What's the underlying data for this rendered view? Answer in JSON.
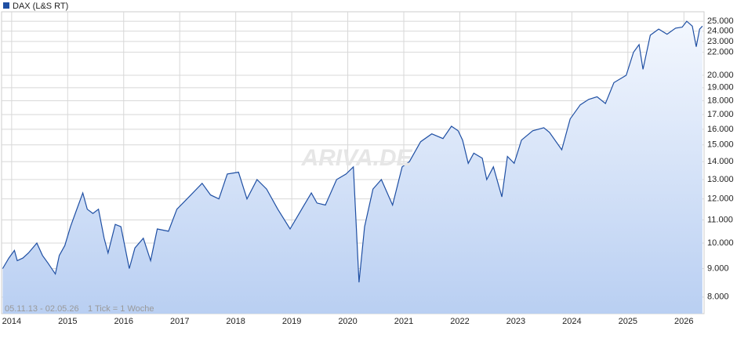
{
  "chart_data": {
    "type": "area",
    "legend": "DAX (L&S RT)",
    "range_note": "05.11.13 - 02.05.26",
    "tick_note": "1 Tick = 1 Woche",
    "watermark": "ARIVA.DE",
    "color": "#1f4fa3",
    "log_scale": true,
    "grid": true,
    "x": [
      2013.84,
      2013.95,
      2014.05,
      2014.1,
      2014.2,
      2014.3,
      2014.45,
      2014.55,
      2014.65,
      2014.78,
      2014.85,
      2014.95,
      2015.05,
      2015.15,
      2015.27,
      2015.35,
      2015.45,
      2015.55,
      2015.65,
      2015.72,
      2015.85,
      2015.95,
      2016.1,
      2016.2,
      2016.35,
      2016.48,
      2016.6,
      2016.8,
      2016.95,
      2017.2,
      2017.4,
      2017.55,
      2017.7,
      2017.85,
      2018.05,
      2018.2,
      2018.38,
      2018.55,
      2018.75,
      2018.97,
      2019.2,
      2019.35,
      2019.45,
      2019.6,
      2019.8,
      2019.97,
      2020.1,
      2020.2,
      2020.3,
      2020.45,
      2020.6,
      2020.8,
      2020.97,
      2021.1,
      2021.3,
      2021.5,
      2021.7,
      2021.85,
      2021.97,
      2022.05,
      2022.15,
      2022.25,
      2022.4,
      2022.48,
      2022.6,
      2022.75,
      2022.85,
      2022.97,
      2023.1,
      2023.3,
      2023.5,
      2023.6,
      2023.82,
      2023.97,
      2024.15,
      2024.3,
      2024.45,
      2024.6,
      2024.75,
      2024.97,
      2025.1,
      2025.2,
      2025.27,
      2025.4,
      2025.55,
      2025.7,
      2025.85,
      2025.97,
      2026.05,
      2026.15,
      2026.22,
      2026.28,
      2026.33
    ],
    "values": [
      9000,
      9400,
      9700,
      9300,
      9400,
      9600,
      10000,
      9500,
      9200,
      8800,
      9500,
      9900,
      10700,
      11400,
      12300,
      11500,
      11300,
      11500,
      10200,
      9600,
      10800,
      10700,
      9000,
      9800,
      10200,
      9300,
      10600,
      10500,
      11500,
      12200,
      12800,
      12200,
      12000,
      13300,
      13400,
      12000,
      13000,
      12500,
      11500,
      10600,
      11600,
      12300,
      11800,
      11700,
      13000,
      13300,
      13700,
      8500,
      10700,
      12500,
      13000,
      11700,
      13700,
      14000,
      15200,
      15700,
      15400,
      16200,
      15900,
      15300,
      13900,
      14500,
      14200,
      13000,
      13700,
      12100,
      14300,
      13900,
      15300,
      15900,
      16100,
      15800,
      14700,
      16700,
      17700,
      18100,
      18300,
      17800,
      19400,
      20000,
      22000,
      22700,
      20500,
      23600,
      24200,
      23700,
      24300,
      24400,
      25000,
      24500,
      22500,
      24200,
      24500
    ],
    "xlim": [
      2013.82,
      2026.36
    ],
    "xticks": [
      2014,
      2015,
      2016,
      2017,
      2018,
      2019,
      2020,
      2021,
      2022,
      2023,
      2024,
      2025,
      2026
    ],
    "ylim": [
      7470,
      26000
    ],
    "yticks": [
      {
        "value": 8000,
        "label": "8.000"
      },
      {
        "value": 9000,
        "label": "9.000"
      },
      {
        "value": 10000,
        "label": "10.000"
      },
      {
        "value": 11000,
        "label": "11.000"
      },
      {
        "value": 12000,
        "label": "12.000"
      },
      {
        "value": 13000,
        "label": "13.000"
      },
      {
        "value": 14000,
        "label": "14.000"
      },
      {
        "value": 15000,
        "label": "15.000"
      },
      {
        "value": 16000,
        "label": "16.000"
      },
      {
        "value": 17000,
        "label": "17.000"
      },
      {
        "value": 18000,
        "label": "18.000"
      },
      {
        "value": 19000,
        "label": "19.000"
      },
      {
        "value": 20000,
        "label": "20.000"
      },
      {
        "value": 22000,
        "label": "22.000"
      },
      {
        "value": 23000,
        "label": "23.000"
      },
      {
        "value": 24000,
        "label": "24.000"
      },
      {
        "value": 25000,
        "label": "25.000"
      }
    ]
  }
}
